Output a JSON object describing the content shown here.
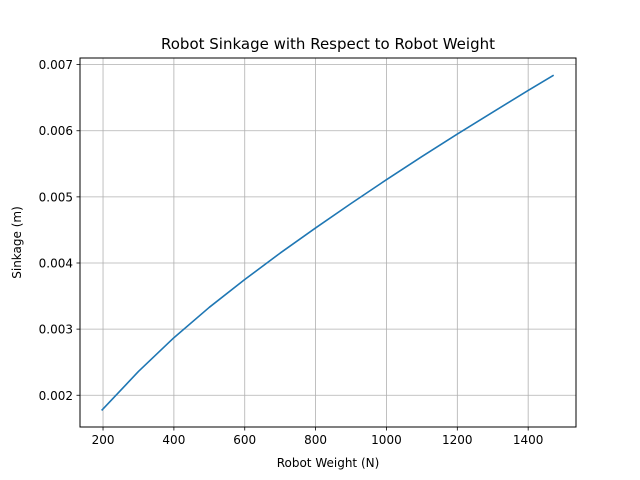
{
  "chart_data": {
    "type": "line",
    "title": "Robot Sinkage with Respect to Robot Weight",
    "xlabel": "Robot Weight (N)",
    "ylabel": "Sinkage (m)",
    "xlim": [
      135,
      1535
    ],
    "ylim": [
      0.00152,
      0.0071
    ],
    "xticks": [
      200,
      400,
      600,
      800,
      1000,
      1200,
      1400
    ],
    "yticks": [
      0.002,
      0.003,
      0.004,
      0.005,
      0.006,
      0.007
    ],
    "xtick_labels": [
      "200",
      "400",
      "600",
      "800",
      "1000",
      "1200",
      "1400"
    ],
    "ytick_labels": [
      "0.002",
      "0.003",
      "0.004",
      "0.005",
      "0.006",
      "0.007"
    ],
    "grid": true,
    "series": [
      {
        "color": "#1f77b4",
        "x": [
          196,
          300,
          400,
          500,
          600,
          700,
          800,
          900,
          1000,
          1100,
          1200,
          1300,
          1400,
          1472
        ],
        "y": [
          0.00177,
          0.00236,
          0.00287,
          0.00333,
          0.00375,
          0.00415,
          0.00453,
          0.0049,
          0.00526,
          0.00561,
          0.00595,
          0.00628,
          0.00661,
          0.00684
        ]
      }
    ]
  }
}
